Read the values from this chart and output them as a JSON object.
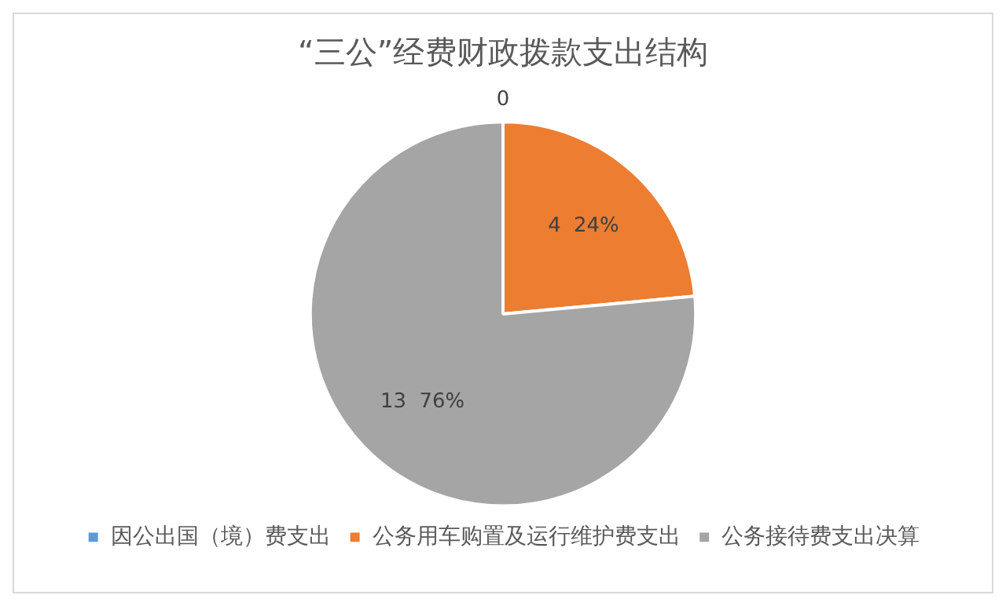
{
  "chart_data": {
    "type": "pie",
    "title": "“三公”经费财政拨款支出结构",
    "categories": [
      "因公出国（境）费支出",
      "公务用车购置及运行维护费支出",
      "公务接待费支出决算"
    ],
    "values": [
      0,
      4,
      13
    ],
    "colors": [
      "#5b9bd5",
      "#ed7d31",
      "#a5a5a5"
    ],
    "value_labels": [
      "0",
      "4  24%",
      "13  76%"
    ],
    "legend": "bottom"
  }
}
